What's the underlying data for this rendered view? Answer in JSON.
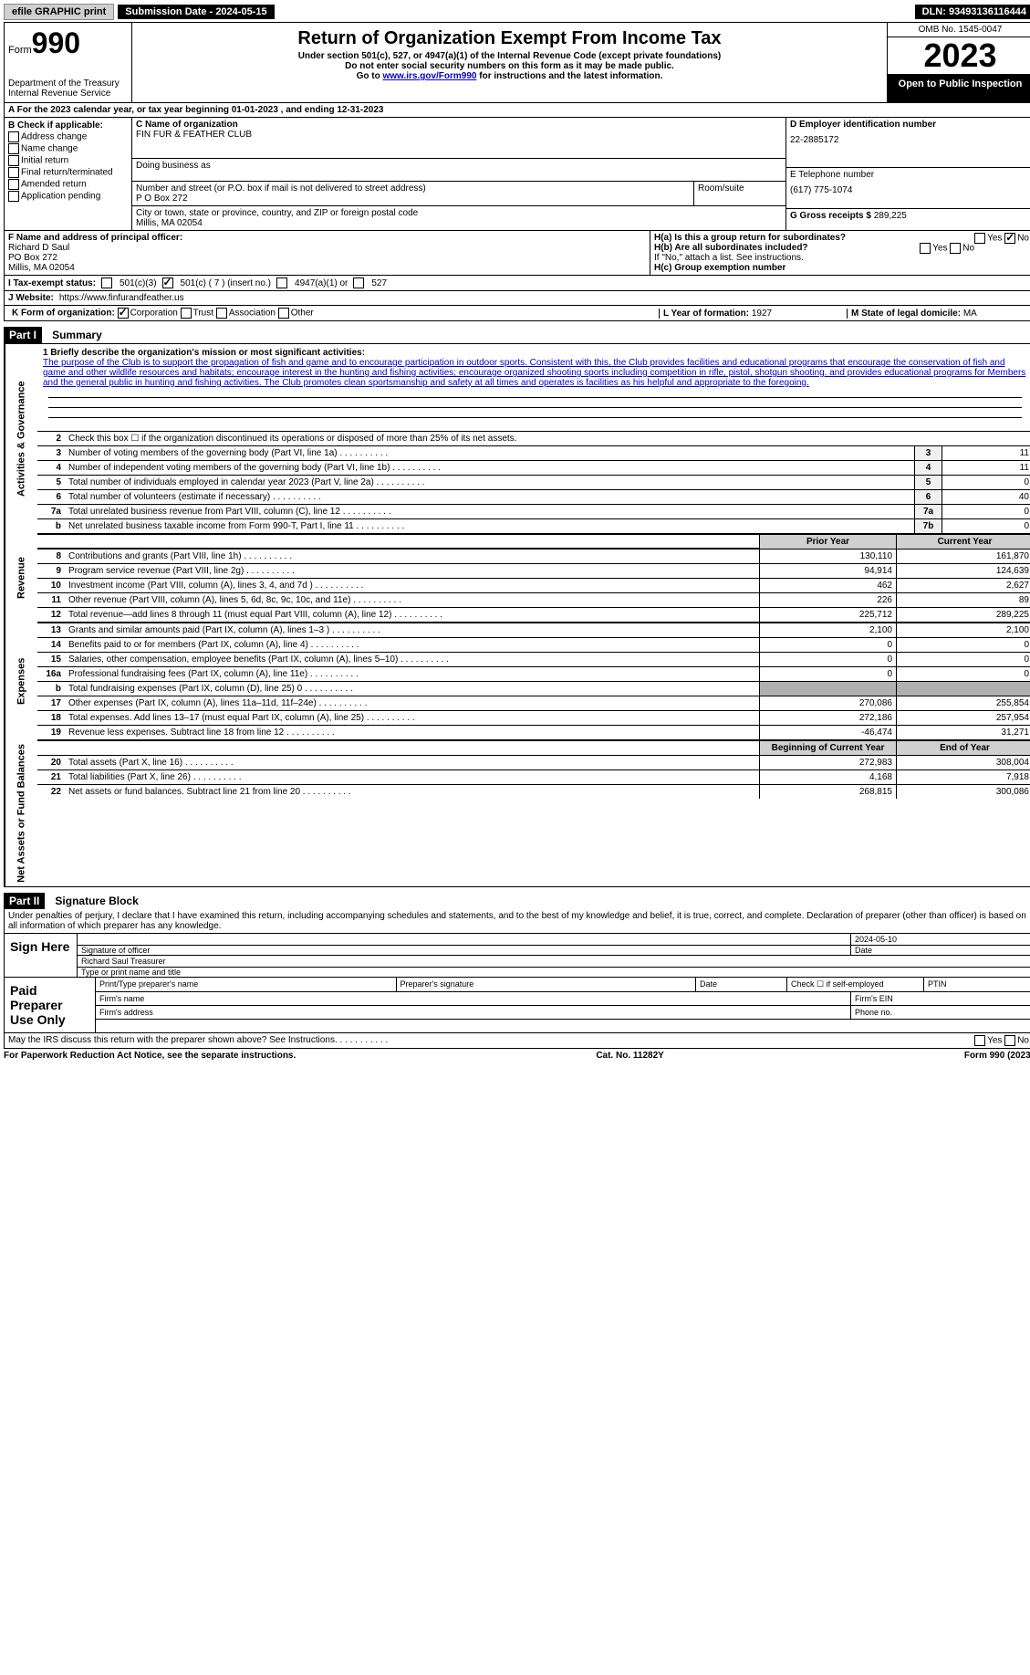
{
  "top": {
    "efile_label": "efile GRAPHIC print",
    "submission_label": "Submission Date - 2024-05-15",
    "dln": "DLN: 93493136116444"
  },
  "header": {
    "form_word": "Form",
    "form_num": "990",
    "dept": "Department of the Treasury",
    "irs": "Internal Revenue Service",
    "title": "Return of Organization Exempt From Income Tax",
    "subtitle": "Under section 501(c), 527, or 4947(a)(1) of the Internal Revenue Code (except private foundations)",
    "ssn_note": "Do not enter social security numbers on this form as it may be made public.",
    "goto_prefix": "Go to ",
    "goto_link": "www.irs.gov/Form990",
    "goto_suffix": " for instructions and the latest information.",
    "omb": "OMB No. 1545-0047",
    "year": "2023",
    "open_public": "Open to Public Inspection"
  },
  "calendar": "For the 2023 calendar year, or tax year beginning 01-01-2023   , and ending 12-31-2023",
  "section_a_prefix": "A",
  "section_b": {
    "label": "B Check if applicable:",
    "addr_change": "Address change",
    "name_change": "Name change",
    "initial": "Initial return",
    "final": "Final return/terminated",
    "amended": "Amended return",
    "app_pending": "Application pending"
  },
  "section_c": {
    "name_label": "C Name of organization",
    "name": "FIN FUR & FEATHER CLUB",
    "dba_label": "Doing business as",
    "street_label": "Number and street (or P.O. box if mail is not delivered to street address)",
    "street": "P O Box 272",
    "room_label": "Room/suite",
    "city_label": "City or town, state or province, country, and ZIP or foreign postal code",
    "city": "Millis, MA  02054"
  },
  "section_d": {
    "ein_label": "D Employer identification number",
    "ein": "22-2885172",
    "phone_label": "E Telephone number",
    "phone": "(617) 775-1074",
    "gross_label": "G Gross receipts $",
    "gross": " 289,225"
  },
  "section_f": {
    "label": "F  Name and address of principal officer:",
    "name": "Richard D Saul",
    "addr1": "PO Box 272",
    "addr2": "Millis, MA  02054"
  },
  "section_h": {
    "ha_label": "H(a)  Is this a group return for subordinates?",
    "hb_label": "H(b)  Are all subordinates included?",
    "hb_note": "If \"No,\" attach a list. See instructions.",
    "hc_label": "H(c)  Group exemption number",
    "yes": "Yes",
    "no": "No"
  },
  "tax_status": {
    "label": "I  Tax-exempt status:",
    "c3": "501(c)(3)",
    "c": "501(c) ( 7 ) (insert no.)",
    "a1": "4947(a)(1) or",
    "s527": "527"
  },
  "website": {
    "label": "J  Website:",
    "url": "https://www.finfurandfeather.us"
  },
  "org_form": {
    "label": "K Form of organization:",
    "corp": "Corporation",
    "trust": "Trust",
    "assoc": "Association",
    "other": "Other",
    "year_label": "L Year of formation: ",
    "year": "1927",
    "state_label": "M State of legal domicile: ",
    "state": "MA"
  },
  "part1_label": "Part I",
  "part1_title": "Summary",
  "side_labels": {
    "act_gov": "Activities & Governance",
    "revenue": "Revenue",
    "expenses": "Expenses",
    "net": "Net Assets or Fund Balances"
  },
  "mission": {
    "label": "1  Briefly describe the organization's mission or most significant activities:",
    "text": "The purpose of the Club is to support the propagation of fish and game and to encourage participation in outdoor sports. Consistent with this, the Club provides facilities and educational programs that encourage the conservation of fish and game and other wildlife resources and habitats; encourage interest in the hunting and fishing activities; encourage organized shooting sports including competition in rifle, pistol, shotgun shooting. and provides educational programs for Members and the general public in hunting and fishing activities. The Club promotes clean sportsmanship and safety at all times and operates is facilities as his helpful and appropriate to the foregoing."
  },
  "line2": "Check this box  ☐  if the organization discontinued its operations or disposed of more than 25% of its net assets.",
  "gov_lines": [
    {
      "num": "3",
      "desc": "Number of voting members of the governing body (Part VI, line 1a)",
      "box": "3",
      "val": "11"
    },
    {
      "num": "4",
      "desc": "Number of independent voting members of the governing body (Part VI, line 1b)",
      "box": "4",
      "val": "11"
    },
    {
      "num": "5",
      "desc": "Total number of individuals employed in calendar year 2023 (Part V, line 2a)",
      "box": "5",
      "val": "0"
    },
    {
      "num": "6",
      "desc": "Total number of volunteers (estimate if necessary)",
      "box": "6",
      "val": "40"
    },
    {
      "num": "7a",
      "desc": "Total unrelated business revenue from Part VIII, column (C), line 12",
      "box": "7a",
      "val": "0"
    },
    {
      "num": "b",
      "desc": "Net unrelated business taxable income from Form 990-T, Part I, line 11",
      "box": "7b",
      "val": "0"
    }
  ],
  "fin_header": {
    "prior": "Prior Year",
    "curr": "Current Year"
  },
  "rev_lines": [
    {
      "num": "8",
      "desc": "Contributions and grants (Part VIII, line 1h)",
      "prior": "130,110",
      "curr": "161,870"
    },
    {
      "num": "9",
      "desc": "Program service revenue (Part VIII, line 2g)",
      "prior": "94,914",
      "curr": "124,639"
    },
    {
      "num": "10",
      "desc": "Investment income (Part VIII, column (A), lines 3, 4, and 7d )",
      "prior": "462",
      "curr": "2,627"
    },
    {
      "num": "11",
      "desc": "Other revenue (Part VIII, column (A), lines 5, 6d, 8c, 9c, 10c, and 11e)",
      "prior": "226",
      "curr": "89"
    },
    {
      "num": "12",
      "desc": "Total revenue—add lines 8 through 11 (must equal Part VIII, column (A), line 12)",
      "prior": "225,712",
      "curr": "289,225"
    }
  ],
  "exp_lines": [
    {
      "num": "13",
      "desc": "Grants and similar amounts paid (Part IX, column (A), lines 1–3 )",
      "prior": "2,100",
      "curr": "2,100"
    },
    {
      "num": "14",
      "desc": "Benefits paid to or for members (Part IX, column (A), line 4)",
      "prior": "0",
      "curr": "0"
    },
    {
      "num": "15",
      "desc": "Salaries, other compensation, employee benefits (Part IX, column (A), lines 5–10)",
      "prior": "0",
      "curr": "0"
    },
    {
      "num": "16a",
      "desc": "Professional fundraising fees (Part IX, column (A), line 11e)",
      "prior": "0",
      "curr": "0"
    },
    {
      "num": "b",
      "desc": "Total fundraising expenses (Part IX, column (D), line 25) 0",
      "prior": "",
      "curr": "",
      "shaded": true
    },
    {
      "num": "17",
      "desc": "Other expenses (Part IX, column (A), lines 11a–11d, 11f–24e)",
      "prior": "270,086",
      "curr": "255,854"
    },
    {
      "num": "18",
      "desc": "Total expenses. Add lines 13–17 (must equal Part IX, column (A), line 25)",
      "prior": "272,186",
      "curr": "257,954"
    },
    {
      "num": "19",
      "desc": "Revenue less expenses. Subtract line 18 from line 12",
      "prior": "-46,474",
      "curr": "31,271"
    }
  ],
  "net_header": {
    "prior": "Beginning of Current Year",
    "curr": "End of Year"
  },
  "net_lines": [
    {
      "num": "20",
      "desc": "Total assets (Part X, line 16)",
      "prior": "272,983",
      "curr": "308,004"
    },
    {
      "num": "21",
      "desc": "Total liabilities (Part X, line 26)",
      "prior": "4,168",
      "curr": "7,918"
    },
    {
      "num": "22",
      "desc": "Net assets or fund balances. Subtract line 21 from line 20",
      "prior": "268,815",
      "curr": "300,086"
    }
  ],
  "part2_label": "Part II",
  "part2_title": "Signature Block",
  "penalty": "Under penalties of perjury, I declare that I have examined this return, including accompanying schedules and statements, and to the best of my knowledge and belief, it is true, correct, and complete. Declaration of preparer (other than officer) is based on all information of which preparer has any knowledge.",
  "sign": {
    "label": "Sign Here",
    "sig_of_officer": "Signature of officer",
    "officer_name": "Richard Saul  Treasurer",
    "type_name": "Type or print name and title",
    "date_label": "Date",
    "date": "2024-05-10"
  },
  "preparer": {
    "label": "Paid Preparer Use Only",
    "print_name": "Print/Type preparer's name",
    "signature": "Preparer's signature",
    "date": "Date",
    "self_emp": "Check ☐ if self-employed",
    "ptin": "PTIN",
    "firm_name": "Firm's name",
    "firm_ein": "Firm's EIN",
    "firm_addr": "Firm's address",
    "phone": "Phone no."
  },
  "irs_discuss": "May the IRS discuss this return with the preparer shown above? See Instructions.",
  "footer": {
    "paperwork": "For Paperwork Reduction Act Notice, see the separate instructions.",
    "cat": "Cat. No. 11282Y",
    "form": "Form 990 (2023)"
  }
}
